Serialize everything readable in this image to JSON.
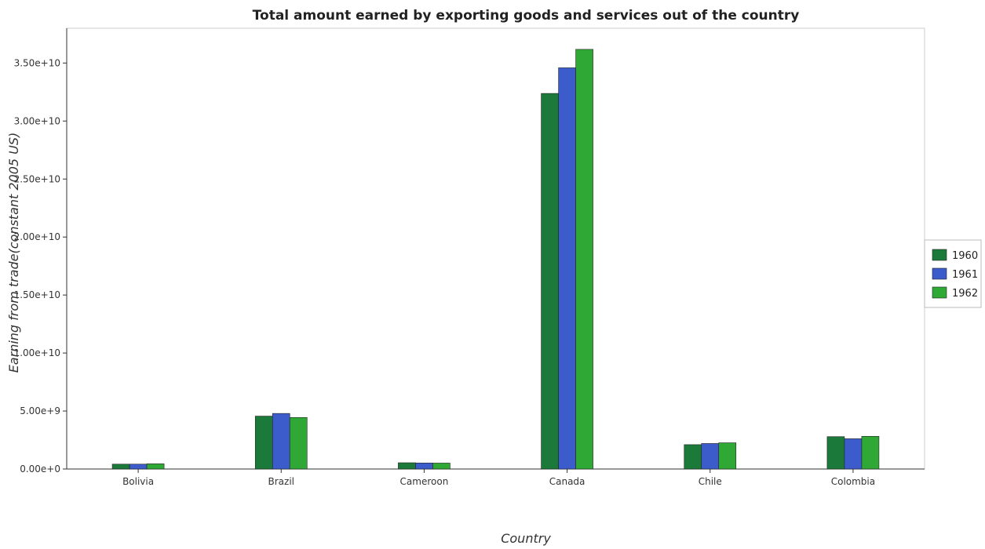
{
  "chart_data": {
    "type": "bar",
    "title": "Total amount earned by exporting goods and services out of the country",
    "xlabel": "Country",
    "ylabel": "Earning from trade(constant 2005 US)",
    "categories": [
      "Bolivia",
      "Brazil",
      "Cameroon",
      "Canada",
      "Chile",
      "Colombia"
    ],
    "series": [
      {
        "name": "1960",
        "color": "#1b7a3a",
        "values": [
          420000000.0,
          4560000000.0,
          540000000.0,
          32380000000.0,
          2100000000.0,
          2790000000.0
        ]
      },
      {
        "name": "1961",
        "color": "#3c5ccc",
        "values": [
          420000000.0,
          4790000000.0,
          520000000.0,
          34590000000.0,
          2200000000.0,
          2610000000.0
        ]
      },
      {
        "name": "1962",
        "color": "#2fa836",
        "values": [
          450000000.0,
          4440000000.0,
          510000000.0,
          36180000000.0,
          2260000000.0,
          2820000000.0
        ]
      }
    ],
    "ylim": [
      0,
      38000000000.0
    ],
    "yticks": [
      0,
      5000000000.0,
      10000000000.0,
      15000000000.0,
      20000000000.0,
      25000000000.0,
      30000000000.0,
      35000000000.0
    ],
    "ytick_labels": [
      "0.00e+0",
      "5.00e+9",
      "1.00e+10",
      "1.50e+10",
      "2.00e+10",
      "2.50e+10",
      "3.00e+10",
      "3.50e+10"
    ],
    "grid": false,
    "legend_position": "right"
  }
}
